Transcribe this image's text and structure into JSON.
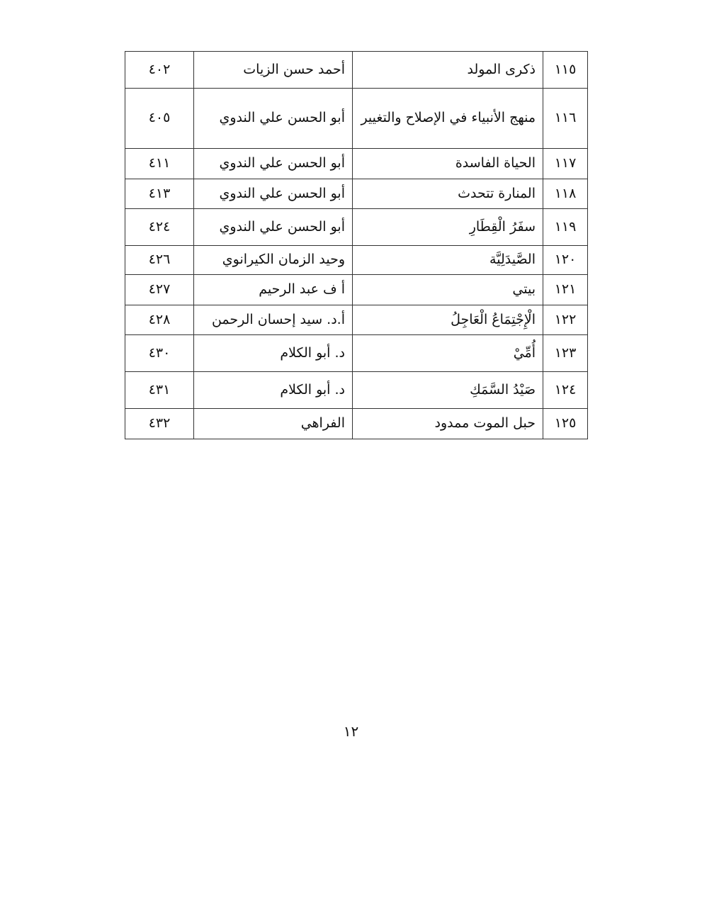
{
  "table": {
    "rows": [
      {
        "num": "١١٥",
        "title": "ذكرى المولد",
        "author": "أحمد حسن الزيات",
        "page": "٤٠٢"
      },
      {
        "num": "١١٦",
        "title": "منهج الأنبياء في الإصلاح والتغيير",
        "author": "أبو الحسن علي الندوي",
        "page": "٤٠٥"
      },
      {
        "num": "١١٧",
        "title": "الحياة الفاسدة",
        "author": "أبو الحسن علي الندوي",
        "page": "٤١١"
      },
      {
        "num": "١١٨",
        "title": "المنارة تتحدث",
        "author": "أبو الحسن علي الندوي",
        "page": "٤١٣"
      },
      {
        "num": "١١٩",
        "title": "سفَرُ الْقِطَارِ",
        "author": "أبو الحسن علي الندوي",
        "page": "٤٢٤"
      },
      {
        "num": "١٢٠",
        "title": "الصَّيدَلِيَّة",
        "author": "وحيد الزمان الكيرانوي",
        "page": "٤٢٦"
      },
      {
        "num": "١٢١",
        "title": "بيتي",
        "author": "أ ف عبد الرحيم",
        "page": "٤٢٧"
      },
      {
        "num": "١٢٢",
        "title": "الْإِجْتِمَاعُ الْعَاجِلُ",
        "author": "أ.د. سيد إحسان الرحمن",
        "page": "٤٢٨"
      },
      {
        "num": "١٢٣",
        "title": "أُمِّيْ",
        "author": "د. أبو الكلام",
        "page": "٤٣٠"
      },
      {
        "num": "١٢٤",
        "title": "صَيْدُ السَّمَكِ",
        "author": "د. أبو الكلام",
        "page": "٤٣١"
      },
      {
        "num": "١٢٥",
        "title": "حبل الموت ممدود",
        "author": "الفراهي",
        "page": "٤٣٢"
      }
    ]
  },
  "footer": {
    "page_number": "١٢"
  }
}
